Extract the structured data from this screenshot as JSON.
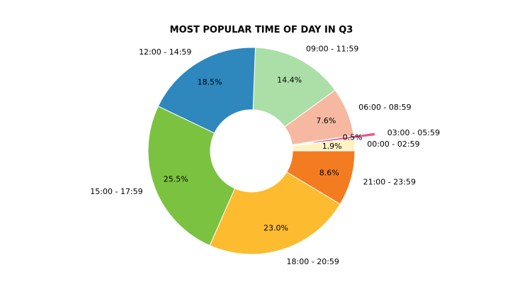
{
  "chart_data": {
    "type": "pie",
    "title": "MOST POPULAR TIME OF DAY IN Q3",
    "donut": true,
    "legend": "none",
    "slices": [
      {
        "label": "00:00 - 02:59",
        "value": 1.9,
        "pct_label": "1.9%",
        "color": "#fff2c2",
        "explode": 0
      },
      {
        "label": "03:00 - 05:59",
        "value": 0.5,
        "pct_label": "0.5%",
        "color": "#e7578a",
        "explode": 1
      },
      {
        "label": "06:00 - 08:59",
        "value": 7.6,
        "pct_label": "7.6%",
        "color": "#f7b8a2",
        "explode": 0
      },
      {
        "label": "09:00 - 11:59",
        "value": 14.4,
        "pct_label": "14.4%",
        "color": "#abdfa7",
        "explode": 0
      },
      {
        "label": "12:00 - 14:59",
        "value": 18.5,
        "pct_label": "18.5%",
        "color": "#2e87bd",
        "explode": 0
      },
      {
        "label": "15:00 - 17:59",
        "value": 25.5,
        "pct_label": "25.5%",
        "color": "#7bc241",
        "explode": 0
      },
      {
        "label": "18:00 - 20:59",
        "value": 23.0,
        "pct_label": "23.0%",
        "color": "#fdbb2f",
        "explode": 0
      },
      {
        "label": "21:00 - 23:59",
        "value": 8.6,
        "pct_label": "8.6%",
        "color": "#f47c20",
        "explode": 0
      }
    ]
  }
}
